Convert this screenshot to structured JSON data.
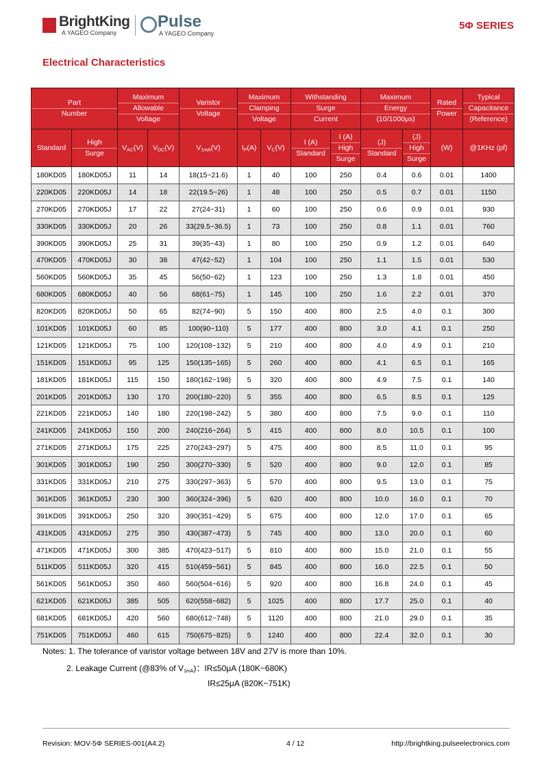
{
  "header": {
    "brand1": "BrightKing",
    "brand1_sub": "A YAGEO Company",
    "brand2": "Pulse",
    "brand2_sub": "A YAGEO Company",
    "series": "5Φ SERIES"
  },
  "section_title": "Electrical Characteristics",
  "table": {
    "group_headers": [
      {
        "lines": [
          "Part",
          "Number"
        ],
        "colspan": 2
      },
      {
        "lines": [
          "Maximum",
          "Allowable",
          "Voltage"
        ],
        "colspan": 2
      },
      {
        "lines": [
          "Varistor",
          "Voltage"
        ],
        "colspan": 1
      },
      {
        "lines": [
          "Maximum",
          "Clamping",
          "Voltage"
        ],
        "colspan": 2
      },
      {
        "lines": [
          "Withstanding",
          "Surge",
          "Current"
        ],
        "colspan": 2
      },
      {
        "lines": [
          "Maximum",
          "Energy",
          "(10/1000μs)"
        ],
        "colspan": 2
      },
      {
        "lines": [
          "Rated",
          "Power"
        ],
        "colspan": 1
      },
      {
        "lines": [
          "Typical",
          "Capacitance",
          "(Reference)"
        ],
        "colspan": 1
      }
    ],
    "sub_headers": [
      {
        "lines": [
          "Standard"
        ]
      },
      {
        "lines": [
          "High",
          "Surge"
        ]
      },
      {
        "base": "V",
        "sub": "AC",
        "unit": "(V)"
      },
      {
        "base": "V",
        "sub": "DC",
        "unit": "(V)"
      },
      {
        "base": "V",
        "sub": "1mA",
        "unit": "(V)"
      },
      {
        "base": "I",
        "sub": "P",
        "unit": "(A)"
      },
      {
        "base": "V",
        "sub": "C",
        "unit": "(V)"
      },
      {
        "lines": [
          "I (A)",
          "Standard"
        ]
      },
      {
        "lines": [
          "I (A)",
          "High",
          "Surge"
        ]
      },
      {
        "lines": [
          "(J)",
          "Standard"
        ]
      },
      {
        "lines": [
          "(J)",
          "High",
          "Surge"
        ]
      },
      {
        "lines": [
          "(W)"
        ]
      },
      {
        "lines": [
          "@1KHz (pf)"
        ]
      }
    ],
    "rows": [
      [
        "180KD05",
        "180KD05J",
        "11",
        "14",
        "18(15~21.6)",
        "1",
        "40",
        "100",
        "250",
        "0.4",
        "0.6",
        "0.01",
        "1400"
      ],
      [
        "220KD05",
        "220KD05J",
        "14",
        "18",
        "22(19.5~26)",
        "1",
        "48",
        "100",
        "250",
        "0.5",
        "0.7",
        "0.01",
        "1150"
      ],
      [
        "270KD05",
        "270KD05J",
        "17",
        "22",
        "27(24~31)",
        "1",
        "60",
        "100",
        "250",
        "0.6",
        "0.9",
        "0.01",
        "930"
      ],
      [
        "330KD05",
        "330KD05J",
        "20",
        "26",
        "33(29.5~36.5)",
        "1",
        "73",
        "100",
        "250",
        "0.8",
        "1.1",
        "0.01",
        "760"
      ],
      [
        "390KD05",
        "390KD05J",
        "25",
        "31",
        "39(35~43)",
        "1",
        "80",
        "100",
        "250",
        "0.9",
        "1.2",
        "0.01",
        "640"
      ],
      [
        "470KD05",
        "470KD05J",
        "30",
        "38",
        "47(42~52)",
        "1",
        "104",
        "100",
        "250",
        "1.1",
        "1.5",
        "0.01",
        "530"
      ],
      [
        "560KD05",
        "560KD05J",
        "35",
        "45",
        "56(50~62)",
        "1",
        "123",
        "100",
        "250",
        "1.3",
        "1.8",
        "0.01",
        "450"
      ],
      [
        "680KD05",
        "680KD05J",
        "40",
        "56",
        "68(61~75)",
        "1",
        "145",
        "100",
        "250",
        "1.6",
        "2.2",
        "0.01",
        "370"
      ],
      [
        "820KD05",
        "820KD05J",
        "50",
        "65",
        "82(74~90)",
        "5",
        "150",
        "400",
        "800",
        "2.5",
        "4.0",
        "0.1",
        "300"
      ],
      [
        "101KD05",
        "101KD05J",
        "60",
        "85",
        "100(90~110)",
        "5",
        "177",
        "400",
        "800",
        "3.0",
        "4.1",
        "0.1",
        "250"
      ],
      [
        "121KD05",
        "121KD05J",
        "75",
        "100",
        "120(108~132)",
        "5",
        "210",
        "400",
        "800",
        "4.0",
        "4.9",
        "0.1",
        "210"
      ],
      [
        "151KD05",
        "151KD05J",
        "95",
        "125",
        "150(135~165)",
        "5",
        "260",
        "400",
        "800",
        "4.1",
        "6.5",
        "0.1",
        "165"
      ],
      [
        "181KD05",
        "181KD05J",
        "115",
        "150",
        "180(162~198)",
        "5",
        "320",
        "400",
        "800",
        "4.9",
        "7.5",
        "0.1",
        "140"
      ],
      [
        "201KD05",
        "201KD05J",
        "130",
        "170",
        "200(180~220)",
        "5",
        "355",
        "400",
        "800",
        "6.5",
        "8.5",
        "0.1",
        "125"
      ],
      [
        "221KD05",
        "221KD05J",
        "140",
        "180",
        "220(198~242)",
        "5",
        "380",
        "400",
        "800",
        "7.5",
        "9.0",
        "0.1",
        "110"
      ],
      [
        "241KD05",
        "241KD05J",
        "150",
        "200",
        "240(216~264)",
        "5",
        "415",
        "400",
        "800",
        "8.0",
        "10.5",
        "0.1",
        "100"
      ],
      [
        "271KD05",
        "271KD05J",
        "175",
        "225",
        "270(243~297)",
        "5",
        "475",
        "400",
        "800",
        "8.5",
        "11.0",
        "0.1",
        "95"
      ],
      [
        "301KD05",
        "301KD05J",
        "190",
        "250",
        "300(270~330)",
        "5",
        "520",
        "400",
        "800",
        "9.0",
        "12.0",
        "0.1",
        "85"
      ],
      [
        "331KD05",
        "331KD05J",
        "210",
        "275",
        "330(297~363)",
        "5",
        "570",
        "400",
        "800",
        "9.5",
        "13.0",
        "0.1",
        "75"
      ],
      [
        "361KD05",
        "361KD05J",
        "230",
        "300",
        "360(324~396)",
        "5",
        "620",
        "400",
        "800",
        "10.0",
        "16.0",
        "0.1",
        "70"
      ],
      [
        "391KD05",
        "391KD05J",
        "250",
        "320",
        "390(351~429)",
        "5",
        "675",
        "400",
        "800",
        "12.0",
        "17.0",
        "0.1",
        "65"
      ],
      [
        "431KD05",
        "431KD05J",
        "275",
        "350",
        "430(387~473)",
        "5",
        "745",
        "400",
        "800",
        "13.0",
        "20.0",
        "0.1",
        "60"
      ],
      [
        "471KD05",
        "471KD05J",
        "300",
        "385",
        "470(423~517)",
        "5",
        "810",
        "400",
        "800",
        "15.0",
        "21.0",
        "0.1",
        "55"
      ],
      [
        "511KD05",
        "511KD05J",
        "320",
        "415",
        "510(459~561)",
        "5",
        "845",
        "400",
        "800",
        "16.0",
        "22.5",
        "0.1",
        "50"
      ],
      [
        "561KD05",
        "561KD05J",
        "350",
        "460",
        "560(504~616)",
        "5",
        "920",
        "400",
        "800",
        "16.8",
        "24.0",
        "0.1",
        "45"
      ],
      [
        "621KD05",
        "621KD05J",
        "385",
        "505",
        "620(558~682)",
        "5",
        "1025",
        "400",
        "800",
        "17.7",
        "25.0",
        "0.1",
        "40"
      ],
      [
        "681KD05",
        "681KD05J",
        "420",
        "560",
        "680(612~748)",
        "5",
        "1120",
        "400",
        "800",
        "21.0",
        "29.0",
        "0.1",
        "35"
      ],
      [
        "751KD05",
        "751KD05J",
        "460",
        "615",
        "750(675~825)",
        "5",
        "1240",
        "400",
        "800",
        "22.4",
        "32.0",
        "0.1",
        "30"
      ]
    ]
  },
  "notes": {
    "note1": "Notes: 1. The tolerance of varistor voltage between 18V and 27V is more than 10%.",
    "note2": {
      "text": "2. Leakage Current (@83% of V",
      "sub": "1mA",
      "rest": ")：IR≤50μA (180K~680K)"
    },
    "note3": "IR≤25μA (820K~751K)"
  },
  "footer": {
    "revision": "Revision: MOV-5Φ SERIES-001(A4.2)",
    "page": "4 / 12",
    "url": "http://brightking.pulseelectronics.com"
  }
}
